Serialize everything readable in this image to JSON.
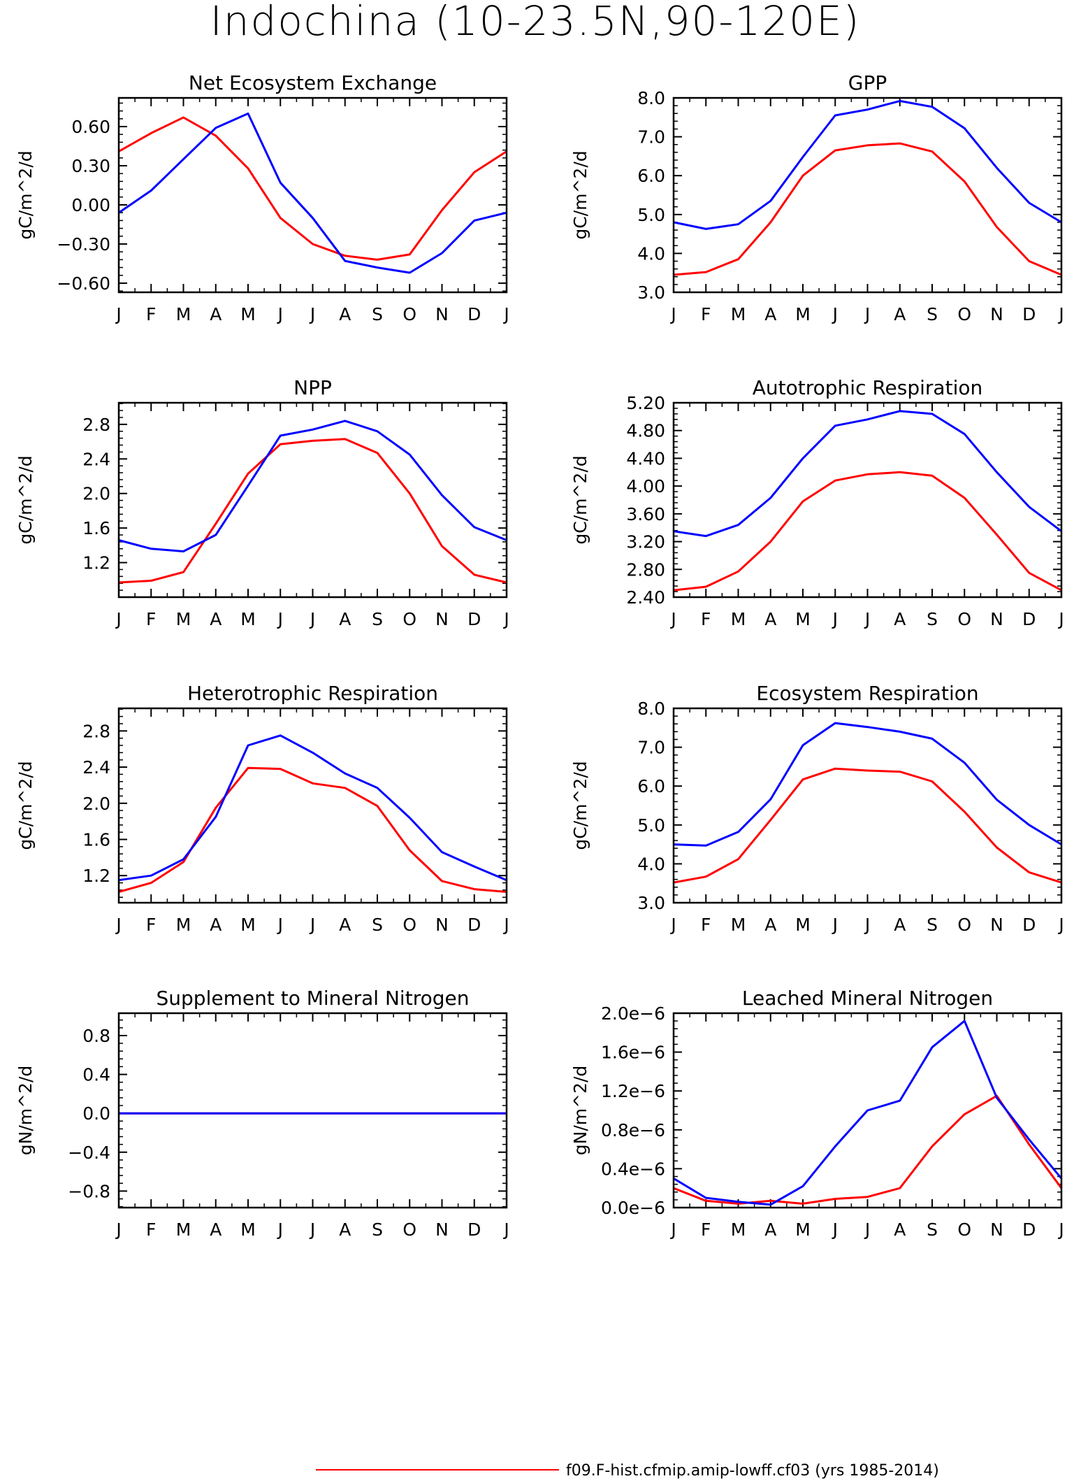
{
  "figure": {
    "title": "Indochina (10-23.5N,90-120E)"
  },
  "legend": [
    {
      "label": "f09.F-hist.cfmip.amip-lowff.cf03 (yrs 1985-2014)",
      "color": "#ff0000"
    }
  ],
  "colors": {
    "red": "#ff0000",
    "blue": "#0000ff",
    "frame": "#000000"
  },
  "chart_data": [
    {
      "type": "line",
      "title": "Net Ecosystem Exchange",
      "ylabel": "gC/m^2/d",
      "categories": [
        "J",
        "F",
        "M",
        "A",
        "M",
        "J",
        "J",
        "A",
        "S",
        "O",
        "N",
        "D",
        "J"
      ],
      "ylim": [
        -0.67,
        0.82
      ],
      "yticks": [
        -0.6,
        -0.3,
        0.0,
        0.3,
        0.6
      ],
      "yticklabels": [
        "-0.60",
        "-0.30",
        "0.00",
        "0.30",
        "0.60"
      ],
      "series": [
        {
          "color": "red",
          "values": [
            0.41,
            0.55,
            0.67,
            0.53,
            0.28,
            -0.1,
            -0.3,
            -0.39,
            -0.42,
            -0.38,
            -0.04,
            0.25,
            0.41
          ]
        },
        {
          "color": "blue",
          "values": [
            -0.06,
            0.11,
            0.35,
            0.59,
            0.7,
            0.17,
            -0.1,
            -0.43,
            -0.48,
            -0.52,
            -0.37,
            -0.12,
            -0.06
          ]
        }
      ]
    },
    {
      "type": "line",
      "title": "GPP",
      "ylabel": "gC/m^2/d",
      "categories": [
        "J",
        "F",
        "M",
        "A",
        "M",
        "J",
        "J",
        "A",
        "S",
        "O",
        "N",
        "D",
        "J"
      ],
      "ylim": [
        3.0,
        8.0
      ],
      "yticks": [
        3.0,
        4.0,
        5.0,
        6.0,
        7.0,
        8.0
      ],
      "yticklabels": [
        "3.0",
        "4.0",
        "5.0",
        "6.0",
        "7.0",
        "8.0"
      ],
      "series": [
        {
          "color": "red",
          "values": [
            3.45,
            3.52,
            3.85,
            4.8,
            6.0,
            6.65,
            6.78,
            6.83,
            6.62,
            5.85,
            4.68,
            3.8,
            3.45
          ]
        },
        {
          "color": "blue",
          "values": [
            4.8,
            4.63,
            4.75,
            5.35,
            6.48,
            7.55,
            7.7,
            7.92,
            7.77,
            7.22,
            6.2,
            5.3,
            4.8
          ]
        }
      ]
    },
    {
      "type": "line",
      "title": "NPP",
      "ylabel": "gC/m^2/d",
      "categories": [
        "J",
        "F",
        "M",
        "A",
        "M",
        "J",
        "J",
        "A",
        "S",
        "O",
        "N",
        "D",
        "J"
      ],
      "ylim": [
        0.8,
        3.05
      ],
      "yticks": [
        1.2,
        1.6,
        2.0,
        2.4,
        2.8
      ],
      "yticklabels": [
        "1.2",
        "1.6",
        "2.0",
        "2.4",
        "2.8"
      ],
      "series": [
        {
          "color": "red",
          "values": [
            0.97,
            0.99,
            1.09,
            1.65,
            2.23,
            2.57,
            2.61,
            2.63,
            2.47,
            2.0,
            1.39,
            1.06,
            0.97
          ]
        },
        {
          "color": "blue",
          "values": [
            1.46,
            1.36,
            1.33,
            1.52,
            2.09,
            2.67,
            2.74,
            2.84,
            2.72,
            2.45,
            1.98,
            1.61,
            1.46
          ]
        }
      ]
    },
    {
      "type": "line",
      "title": "Autotrophic Respiration",
      "ylabel": "gC/m^2/d",
      "categories": [
        "J",
        "F",
        "M",
        "A",
        "M",
        "J",
        "J",
        "A",
        "S",
        "O",
        "N",
        "D",
        "J"
      ],
      "ylim": [
        2.4,
        5.2
      ],
      "yticks": [
        2.4,
        2.8,
        3.2,
        3.6,
        4.0,
        4.4,
        4.8,
        5.2
      ],
      "yticklabels": [
        "2.40",
        "2.80",
        "3.20",
        "3.60",
        "4.00",
        "4.40",
        "4.80",
        "5.20"
      ],
      "series": [
        {
          "color": "red",
          "values": [
            2.5,
            2.55,
            2.77,
            3.2,
            3.78,
            4.08,
            4.17,
            4.2,
            4.15,
            3.83,
            3.3,
            2.75,
            2.5
          ]
        },
        {
          "color": "blue",
          "values": [
            3.35,
            3.28,
            3.44,
            3.83,
            4.4,
            4.87,
            4.96,
            5.08,
            5.04,
            4.75,
            4.2,
            3.7,
            3.35
          ]
        }
      ]
    },
    {
      "type": "line",
      "title": "Heterotrophic Respiration",
      "ylabel": "gC/m^2/d",
      "categories": [
        "J",
        "F",
        "M",
        "A",
        "M",
        "J",
        "J",
        "A",
        "S",
        "O",
        "N",
        "D",
        "J"
      ],
      "ylim": [
        0.9,
        3.05
      ],
      "yticks": [
        1.2,
        1.6,
        2.0,
        2.4,
        2.8
      ],
      "yticklabels": [
        "1.2",
        "1.6",
        "2.0",
        "2.4",
        "2.8"
      ],
      "series": [
        {
          "color": "red",
          "values": [
            1.02,
            1.12,
            1.35,
            1.95,
            2.39,
            2.38,
            2.22,
            2.17,
            1.97,
            1.48,
            1.14,
            1.05,
            1.02
          ]
        },
        {
          "color": "blue",
          "values": [
            1.15,
            1.2,
            1.38,
            1.85,
            2.64,
            2.75,
            2.56,
            2.33,
            2.17,
            1.84,
            1.46,
            1.3,
            1.15
          ]
        }
      ]
    },
    {
      "type": "line",
      "title": "Ecosystem Respiration",
      "ylabel": "gC/m^2/d",
      "categories": [
        "J",
        "F",
        "M",
        "A",
        "M",
        "J",
        "J",
        "A",
        "S",
        "O",
        "N",
        "D",
        "J"
      ],
      "ylim": [
        3.0,
        8.0
      ],
      "yticks": [
        3.0,
        4.0,
        5.0,
        6.0,
        7.0,
        8.0
      ],
      "yticklabels": [
        "3.0",
        "4.0",
        "5.0",
        "6.0",
        "7.0",
        "8.0"
      ],
      "series": [
        {
          "color": "red",
          "values": [
            3.52,
            3.67,
            4.12,
            5.13,
            6.17,
            6.45,
            6.4,
            6.37,
            6.12,
            5.34,
            4.42,
            3.78,
            3.52
          ]
        },
        {
          "color": "blue",
          "values": [
            4.5,
            4.47,
            4.82,
            5.66,
            7.05,
            7.62,
            7.52,
            7.4,
            7.22,
            6.6,
            5.65,
            5.0,
            4.5
          ]
        }
      ]
    },
    {
      "type": "line",
      "title": "Supplement to Mineral Nitrogen",
      "ylabel": "gN/m^2/d",
      "categories": [
        "J",
        "F",
        "M",
        "A",
        "M",
        "J",
        "J",
        "A",
        "S",
        "O",
        "N",
        "D",
        "J"
      ],
      "ylim": [
        -0.97,
        1.03
      ],
      "yticks": [
        -0.8,
        -0.4,
        0.0,
        0.4,
        0.8
      ],
      "yticklabels": [
        "-0.8",
        "-0.4",
        "0.0",
        "0.4",
        "0.8"
      ],
      "series": [
        {
          "color": "red",
          "values": [
            0,
            0,
            0,
            0,
            0,
            0,
            0,
            0,
            0,
            0,
            0,
            0,
            0
          ]
        },
        {
          "color": "blue",
          "values": [
            0,
            0,
            0,
            0,
            0,
            0,
            0,
            0,
            0,
            0,
            0,
            0,
            0
          ]
        }
      ]
    },
    {
      "type": "line",
      "title": "Leached Mineral Nitrogen",
      "ylabel": "gN/m^2/d",
      "categories": [
        "J",
        "F",
        "M",
        "A",
        "M",
        "J",
        "J",
        "A",
        "S",
        "O",
        "N",
        "D",
        "J"
      ],
      "ylim": [
        0.0,
        2e-06
      ],
      "yticks": [
        0.0,
        4e-07,
        8e-07,
        1.2e-06,
        1.6e-06,
        2e-06
      ],
      "yticklabels": [
        "0.0e-6",
        "0.4e-6",
        "0.8e-6",
        "1.2e-6",
        "1.6e-6",
        "2.0e-6"
      ],
      "series": [
        {
          "color": "red",
          "values": [
            2e-07,
            7e-08,
            4e-08,
            7e-08,
            4e-08,
            9e-08,
            1.1e-07,
            2e-07,
            6.3e-07,
            9.6e-07,
            1.15e-06,
            6.5e-07,
            2e-07
          ]
        },
        {
          "color": "blue",
          "values": [
            3e-07,
            1e-07,
            6e-08,
            3e-08,
            2.2e-07,
            6.3e-07,
            1e-06,
            1.1e-06,
            1.65e-06,
            1.92e-06,
            1.13e-06,
            7e-07,
            3e-07
          ]
        }
      ]
    }
  ]
}
